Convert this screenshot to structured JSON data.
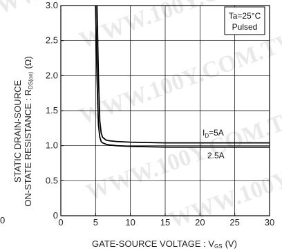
{
  "chart_data": {
    "type": "line",
    "xlabel_main": "GATE-SOURCE  VOLTAGE : V",
    "xlabel_sub": "GS",
    "xlabel_unit": "(V)",
    "ylabel_line1": "STATIC  DRAIN-SOURCE",
    "ylabel_line2_main": "ON-STATE  RESISTANCE : R",
    "ylabel_line2_sub": "DS(on)",
    "ylabel_line2_unit": "(Ω)",
    "xlim": [
      0,
      30
    ],
    "ylim": [
      0,
      3.0
    ],
    "x_ticks": [
      "0",
      "5",
      "10",
      "15",
      "20",
      "25",
      "30"
    ],
    "y_ticks": [
      "0",
      "0.5",
      "1.0",
      "1.5",
      "2.0",
      "2.5",
      "3.0"
    ],
    "grid": true,
    "legend_box": {
      "line1": "Ta=25°C",
      "line2": "Pulsed"
    },
    "series": [
      {
        "name": "ID=5A",
        "label_main": "I",
        "label_sub": "D",
        "label_rest": "=5A",
        "x": [
          5.2,
          5.4,
          5.6,
          5.8,
          6.0,
          6.5,
          7,
          8,
          10,
          15,
          20,
          25,
          30
        ],
        "y": [
          3.0,
          2.0,
          1.35,
          1.18,
          1.12,
          1.08,
          1.07,
          1.06,
          1.05,
          1.04,
          1.04,
          1.04,
          1.04
        ]
      },
      {
        "name": "2.5A",
        "label_main": "2.5A",
        "x": [
          5.0,
          5.2,
          5.4,
          5.6,
          5.8,
          6.0,
          6.5,
          7,
          8,
          10,
          15,
          20,
          25,
          30
        ],
        "y": [
          3.0,
          2.0,
          1.3,
          1.12,
          1.06,
          1.04,
          1.02,
          1.01,
          1.0,
          0.99,
          0.98,
          0.98,
          0.98,
          0.98
        ]
      }
    ],
    "series_color": "#000000"
  },
  "watermark_text": "WWW.100Y.COM.TW",
  "stray_label": "0"
}
